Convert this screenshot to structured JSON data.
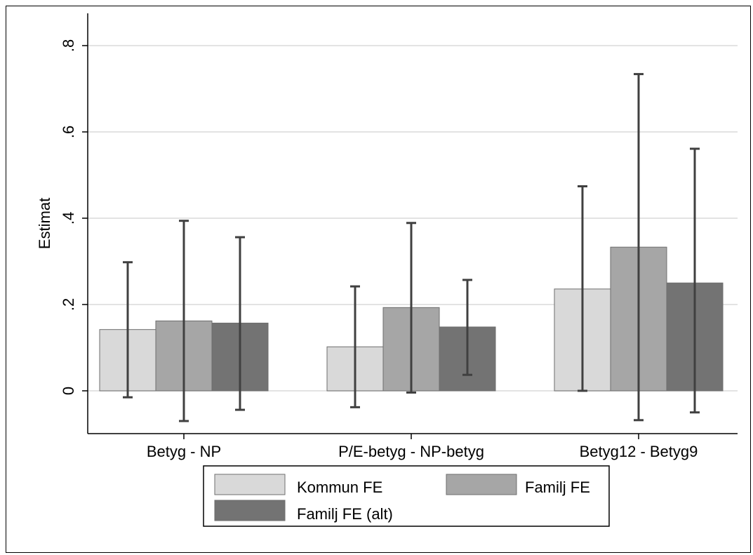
{
  "chart_data": {
    "type": "bar",
    "ylabel": "Estimat",
    "xlabel": "",
    "ylim": [
      -0.1,
      0.8
    ],
    "yticks": [
      {
        "value": 0,
        "label": "0"
      },
      {
        "value": 0.2,
        "label": ".2"
      },
      {
        "value": 0.4,
        "label": ".4"
      },
      {
        "value": 0.6,
        "label": ".6"
      },
      {
        "value": 0.8,
        "label": ".8"
      }
    ],
    "grid": true,
    "legend_position": "bottom",
    "categories": [
      "Betyg - NP",
      "P/E-betyg - NP-betyg",
      "Betyg12 - Betyg9"
    ],
    "series": [
      {
        "name": "Kommun FE",
        "color": "#d9d9d9",
        "values": [
          0.142,
          0.102,
          0.236
        ],
        "ci_low": [
          -0.015,
          -0.038,
          0.0
        ],
        "ci_high": [
          0.298,
          0.242,
          0.474
        ]
      },
      {
        "name": "Familj FE",
        "color": "#a6a6a6",
        "values": [
          0.162,
          0.193,
          0.333
        ],
        "ci_low": [
          -0.07,
          -0.004,
          -0.068
        ],
        "ci_high": [
          0.394,
          0.389,
          0.734
        ]
      },
      {
        "name": "Familj FE (alt)",
        "color": "#737373",
        "values": [
          0.157,
          0.148,
          0.25
        ],
        "ci_low": [
          -0.044,
          0.037,
          -0.05
        ],
        "ci_high": [
          0.356,
          0.257,
          0.561
        ]
      }
    ],
    "errorbar_color": "#404040"
  }
}
